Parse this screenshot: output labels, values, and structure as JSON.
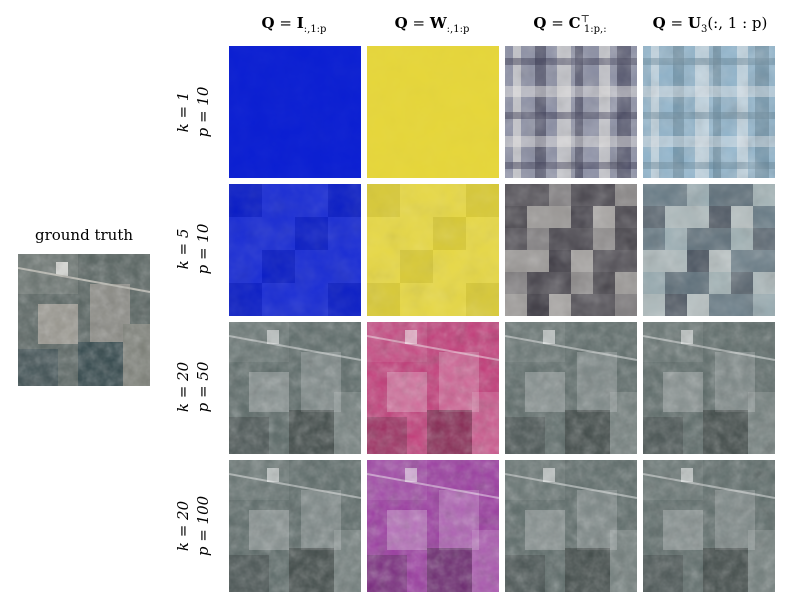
{
  "ground_truth": {
    "title": "ground truth"
  },
  "columns": [
    {
      "q": "Q",
      "eq": " = ",
      "m": "I",
      "sub": ":,1:p",
      "sup": "",
      "tail": ""
    },
    {
      "q": "Q",
      "eq": " = ",
      "m": "W",
      "sub": ":,1:p",
      "sup": "",
      "tail": ""
    },
    {
      "q": "Q",
      "eq": " = ",
      "m": "C",
      "sub": "1:p,:",
      "sup": "⊤",
      "tail": ""
    },
    {
      "q": "Q",
      "eq": " = ",
      "m": "U",
      "sub": "3",
      "sup": "",
      "tail": "(:, 1 : p)"
    }
  ],
  "rows": [
    {
      "k": "k = 1",
      "p": "p = 10"
    },
    {
      "k": "k = 5",
      "p": "p = 10"
    },
    {
      "k": "k = 20",
      "p": "p = 50"
    },
    {
      "k": "k = 20",
      "p": "p = 100"
    }
  ],
  "tints": {
    "blue": "#0a1ed2",
    "yellow": "#e6d63a",
    "magenta": "#c23a78",
    "purple": "#9a3aa0",
    "natural": "#5c6a68"
  }
}
